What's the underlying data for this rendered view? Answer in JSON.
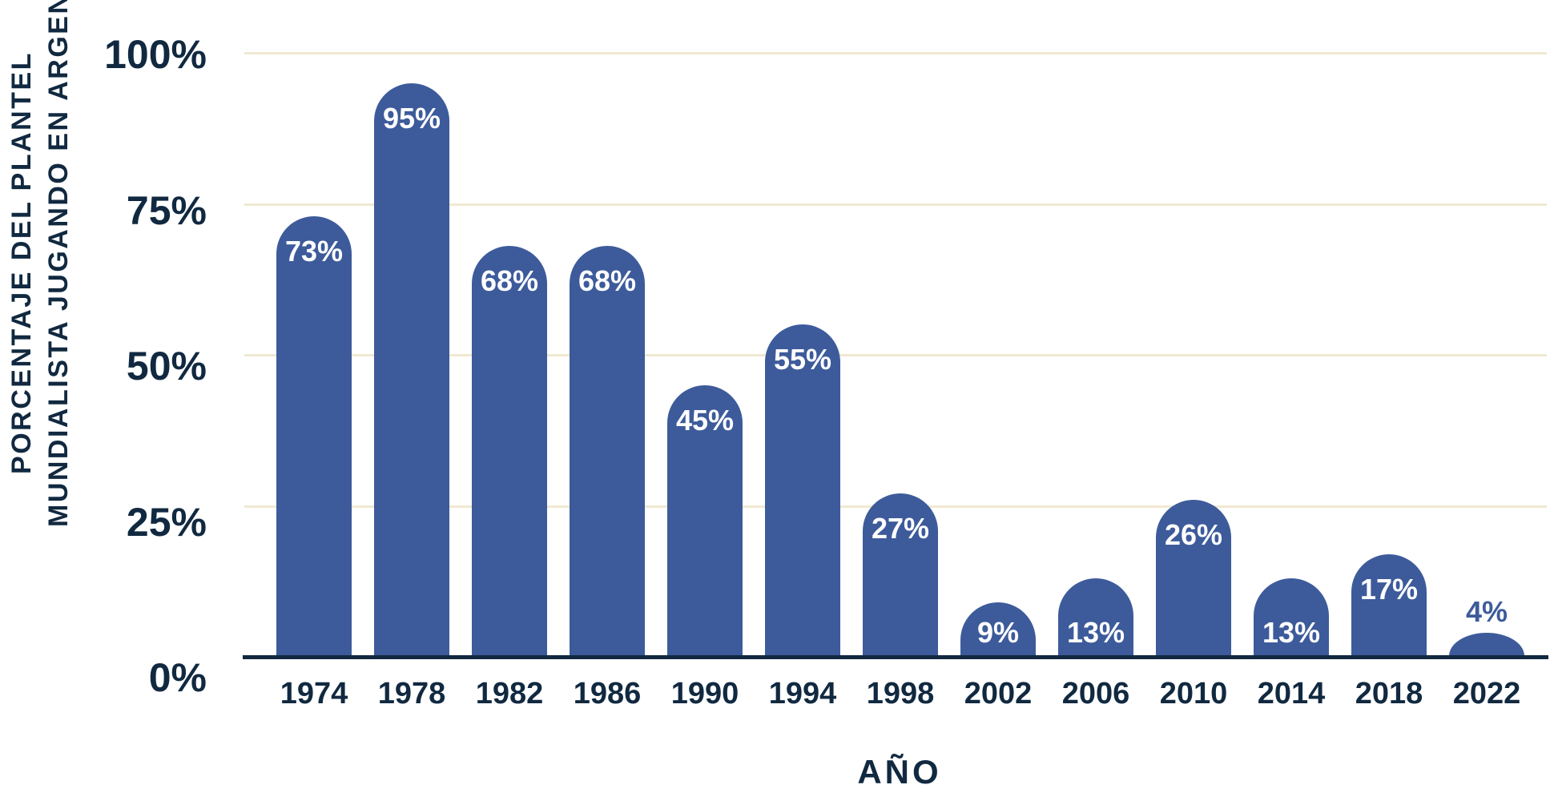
{
  "chart_data": {
    "type": "bar",
    "title": "",
    "categories": [
      "1974",
      "1978",
      "1982",
      "1986",
      "1990",
      "1994",
      "1998",
      "2002",
      "2006",
      "2010",
      "2014",
      "2018",
      "2022"
    ],
    "values": [
      73,
      95,
      68,
      68,
      45,
      55,
      27,
      9,
      13,
      26,
      13,
      17,
      4
    ],
    "data_labels": [
      "73%",
      "95%",
      "68%",
      "68%",
      "45%",
      "55%",
      "27%",
      "9%",
      "13%",
      "26%",
      "13%",
      "17%",
      "4%"
    ],
    "xlabel": "AÑO",
    "ylabel_lines": [
      "PORCENTAJE DEL PLANTEL",
      "MUNDIALISTA JUGANDO EN ARGENTINA"
    ],
    "yticks": [
      "100%",
      "75%",
      "50%",
      "25%",
      "0%"
    ],
    "ytick_values": [
      100,
      75,
      50,
      25,
      0
    ],
    "ylim": [
      0,
      100
    ],
    "grid": true,
    "legend_position": "none"
  },
  "colors": {
    "bar": "#3D5B9B",
    "navy": "#112940",
    "gridline": "#F0E9D1",
    "label_inside": "#FFFFFF",
    "label_outside": "#3D5B9B",
    "background": "#FFFFFF"
  }
}
